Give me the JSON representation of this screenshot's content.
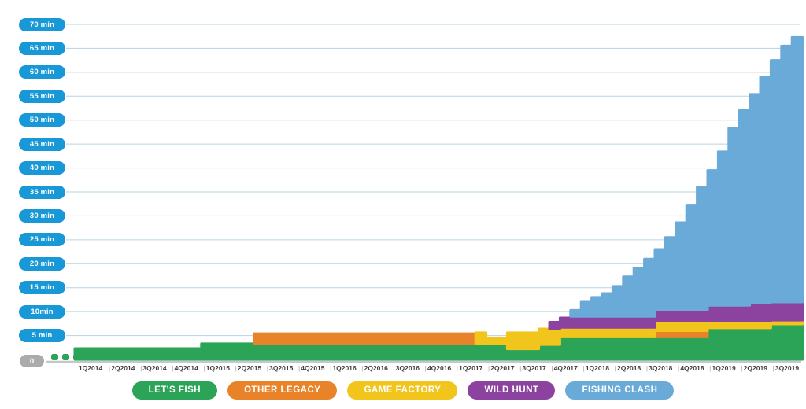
{
  "chart_data": {
    "type": "area",
    "stacked": true,
    "resolution": "monthly",
    "unit": "min",
    "ylim": [
      0,
      70
    ],
    "grid": true,
    "legend_position": "bottom",
    "quarters": [
      "1Q2014",
      "2Q2014",
      "3Q2014",
      "4Q2014",
      "1Q2015",
      "2Q2015",
      "3Q2015",
      "4Q2015",
      "1Q2016",
      "2Q2016",
      "3Q2016",
      "4Q2016",
      "1Q2017",
      "2Q2017",
      "3Q2017",
      "4Q2017",
      "1Q2018",
      "2Q2018",
      "3Q2018",
      "4Q2018",
      "1Q2019",
      "2Q2019",
      "3Q2019"
    ],
    "months_per_quarter": 3,
    "series": [
      {
        "name": "LET'S FISH",
        "color": "#2ba457",
        "values": [
          2.3,
          2.3,
          2.3,
          2.3,
          2.3,
          2.3,
          2.3,
          2.3,
          2.3,
          2.3,
          2.3,
          2.3,
          3.3,
          3.3,
          3.3,
          3.3,
          3.3,
          3.3,
          3.3,
          3.3,
          3.3,
          3.3,
          3.3,
          3.3,
          3.3,
          3.3,
          3.3,
          3.3,
          3.3,
          3.3,
          3.3,
          3.3,
          3.3,
          3.3,
          3.3,
          3.3,
          3.3,
          3.3,
          3.3,
          3.3,
          3.3,
          2.2,
          2.2,
          2.2,
          3.1,
          3.1,
          4.7,
          4.7,
          4.7,
          4.7,
          4.7,
          4.7,
          4.7,
          4.7,
          4.7,
          4.7,
          4.7,
          4.7,
          4.7,
          4.7,
          6.6,
          6.6,
          6.6,
          6.6,
          6.6,
          6.6,
          7.4,
          7.4,
          7.4
        ]
      },
      {
        "name": "OTHER LEGACY",
        "color": "#e8832a",
        "values": [
          0,
          0,
          0,
          0,
          0,
          0,
          0,
          0,
          0,
          0,
          0,
          0,
          0,
          0,
          0,
          0,
          0,
          2.1,
          2.1,
          2.1,
          2.1,
          2.1,
          2.1,
          2.1,
          2.1,
          2.1,
          2.1,
          2.1,
          2.1,
          2.1,
          2.1,
          2.1,
          2.1,
          2.1,
          2.1,
          2.1,
          2.1,
          2.1,
          0,
          0,
          0,
          0,
          0,
          0,
          0,
          0,
          0,
          0,
          0,
          0,
          0,
          0,
          0,
          0,
          0,
          1.3,
          1.3,
          1.3,
          1.3,
          1.3,
          0,
          0,
          0,
          0,
          0,
          0,
          0,
          0,
          0
        ]
      },
      {
        "name": "GAME FACTORY",
        "color": "#f2c51d",
        "values": [
          0,
          0,
          0,
          0,
          0,
          0,
          0,
          0,
          0,
          0,
          0,
          0,
          0,
          0,
          0,
          0,
          0,
          0,
          0,
          0,
          0,
          0,
          0,
          0,
          0,
          0,
          0,
          0,
          0,
          0,
          0,
          0,
          0,
          0,
          0,
          0,
          0,
          0,
          2.3,
          1.1,
          1.1,
          3.4,
          3.4,
          3.4,
          3.3,
          3.3,
          2.0,
          2.0,
          2.0,
          2.0,
          2.0,
          2.0,
          2.0,
          2.0,
          2.0,
          2.0,
          2.0,
          2.0,
          2.0,
          2.0,
          1.5,
          1.5,
          1.5,
          1.5,
          1.5,
          1.5,
          0.8,
          0.8,
          0.8
        ]
      },
      {
        "name": "WILD HUNT",
        "color": "#8c43a0",
        "values": [
          0,
          0,
          0,
          0,
          0,
          0,
          0,
          0,
          0,
          0,
          0,
          0,
          0,
          0,
          0,
          0,
          0,
          0,
          0,
          0,
          0,
          0,
          0,
          0,
          0,
          0,
          0,
          0,
          0,
          0,
          0,
          0,
          0,
          0,
          0,
          0,
          0,
          0,
          0,
          0,
          0,
          0,
          0,
          0,
          0,
          1.4,
          2.0,
          2.3,
          2.3,
          2.3,
          2.3,
          2.3,
          2.3,
          2.3,
          2.3,
          2.3,
          2.3,
          2.3,
          2.3,
          2.3,
          3.2,
          3.2,
          3.2,
          3.2,
          3.8,
          3.8,
          3.8,
          3.8,
          3.8
        ]
      },
      {
        "name": "FISHING CLASH",
        "color": "#6aaad8",
        "values": [
          0,
          0,
          0,
          0,
          0,
          0,
          0,
          0,
          0,
          0,
          0,
          0,
          0,
          0,
          0,
          0,
          0,
          0,
          0,
          0,
          0,
          0,
          0,
          0,
          0,
          0,
          0,
          0,
          0,
          0,
          0,
          0,
          0,
          0,
          0,
          0,
          0,
          0,
          0,
          0,
          0,
          0,
          0,
          0,
          0,
          0,
          0,
          1.3,
          3.0,
          4.0,
          4.8,
          6.3,
          8.3,
          10.1,
          12.0,
          12.7,
          15.2,
          18.3,
          21.8,
          25.7,
          28.2,
          32.1,
          37.0,
          40.7,
          43.5,
          47.1,
          50.5,
          53.5,
          55.3
        ]
      }
    ]
  },
  "y_axis": {
    "tick_labels": [
      "70 min",
      "65 min",
      "60 min",
      "55 min",
      "50 min",
      "45 min",
      "40 min",
      "35 min",
      "30 min",
      "25 min",
      "20 min",
      "15 min",
      "10min",
      "5 min"
    ],
    "tick_values": [
      70,
      65,
      60,
      55,
      50,
      45,
      40,
      35,
      30,
      25,
      20,
      15,
      10,
      5
    ],
    "zero_label": "0",
    "pill_color": "#1898d6",
    "zero_pill_color": "#ababab",
    "gridline_color": "#b7d3e3",
    "baseline_color": "#c3c8cb"
  },
  "x_axis": {
    "labels": [
      "1Q2014",
      "2Q2014",
      "3Q2014",
      "4Q2014",
      "1Q2015",
      "2Q2015",
      "3Q2015",
      "4Q2015",
      "1Q2016",
      "2Q2016",
      "3Q2016",
      "4Q2016",
      "1Q2017",
      "2Q2017",
      "3Q2017",
      "4Q2017",
      "1Q2018",
      "2Q2018",
      "3Q2018",
      "4Q2018",
      "1Q2019",
      "2Q2019",
      "3Q2019"
    ],
    "separator": "|"
  },
  "legend": {
    "items": [
      {
        "label": "LET'S FISH",
        "color": "#2ba457"
      },
      {
        "label": "OTHER LEGACY",
        "color": "#e8832a"
      },
      {
        "label": "GAME FACTORY",
        "color": "#f2c51d"
      },
      {
        "label": "WILD HUNT",
        "color": "#8c43a0"
      },
      {
        "label": "FISHING CLASH",
        "color": "#6aaad8"
      }
    ]
  },
  "decor": {
    "leading_dots": 3,
    "leading_dot_color": "#2ba457"
  }
}
